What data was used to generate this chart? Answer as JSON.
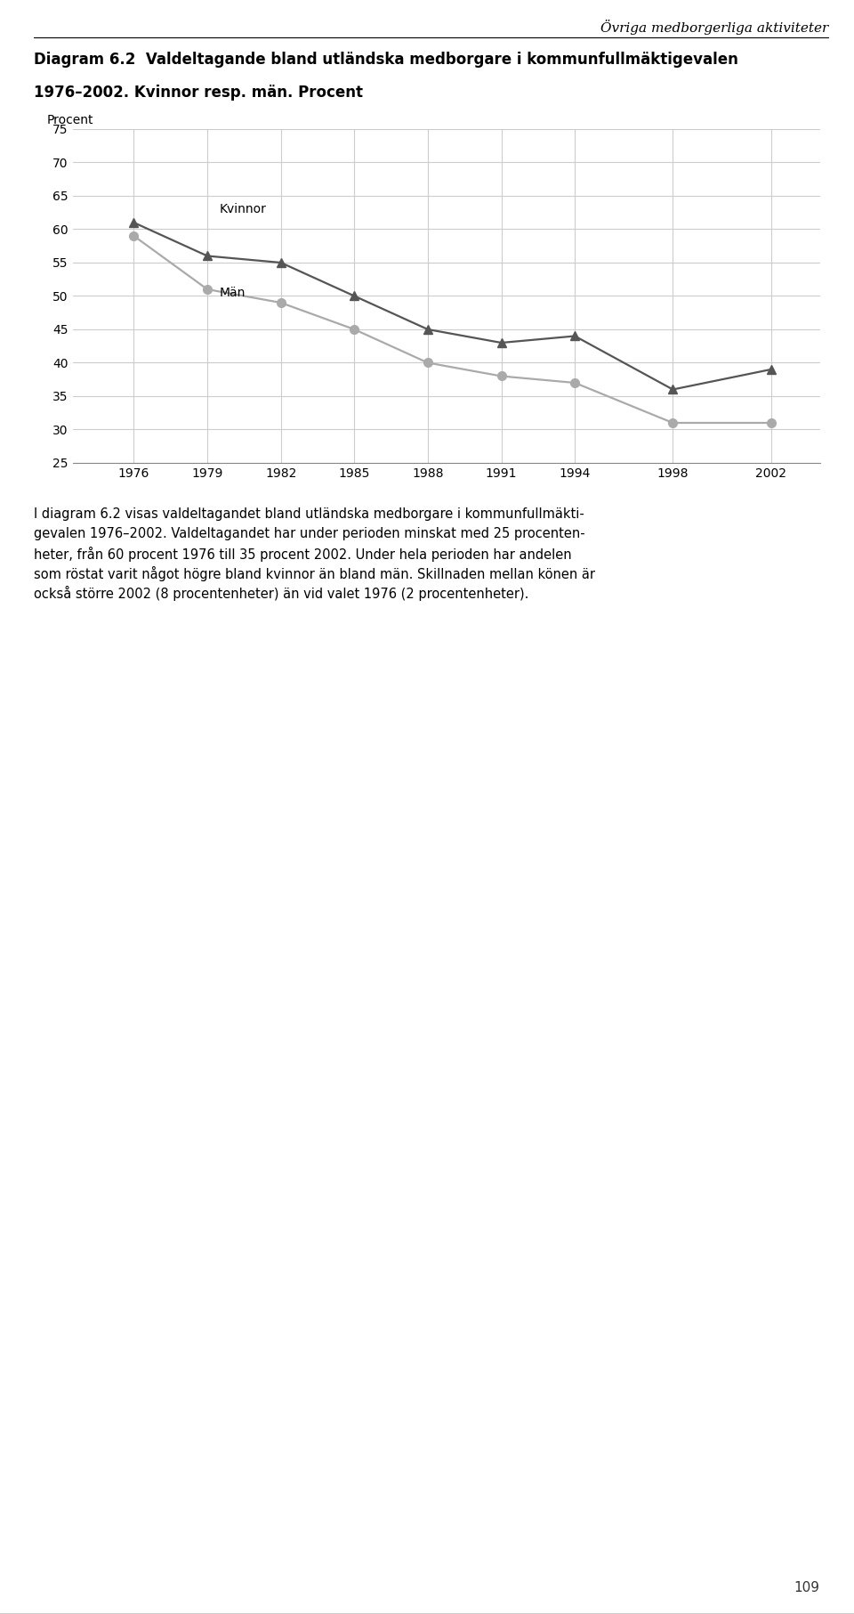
{
  "years": [
    1976,
    1979,
    1982,
    1985,
    1988,
    1991,
    1994,
    1998,
    2002
  ],
  "kvinnor": [
    61,
    56,
    55,
    50,
    45,
    43,
    44,
    36,
    39
  ],
  "man": [
    59,
    51,
    49,
    45,
    40,
    38,
    37,
    31,
    31
  ],
  "kvinnor_color": "#555555",
  "man_color": "#aaaaaa",
  "title_line1": "Diagram 6.2  Valdeltagande bland utländska medborgare i kommunfullmäktigevalen",
  "title_line2": "1976–2002. Kvinnor resp. män. Procent",
  "header_right": "Övriga medborgerliga aktiviteter",
  "ylabel_text": "Procent",
  "ylim": [
    25,
    75
  ],
  "yticks": [
    25,
    30,
    35,
    40,
    45,
    50,
    55,
    60,
    65,
    70,
    75
  ],
  "legend_kvinnor": "Kvinnor",
  "legend_man": "Män",
  "body_text_lines": [
    "I diagram 6.2 visas valdeltagandet bland utländska medborgare i kommunfullmäkti-",
    "gevalen 1976–2002. Valdeltagandet har under perioden minskat med 25 procenten-",
    "heter, från 60 procent 1976 till 35 procent 2002. Under hela perioden har andelen",
    "som röstat varit något högre bland kvinnor än bland män. Skillnaden mellan könen är",
    "också större 2002 (8 procentenheter) än vid valet 1976 (2 procentenheter)."
  ],
  "page_number": "109",
  "background_color": "#ffffff",
  "grid_color": "#cccccc",
  "header_line_color": "#000000"
}
